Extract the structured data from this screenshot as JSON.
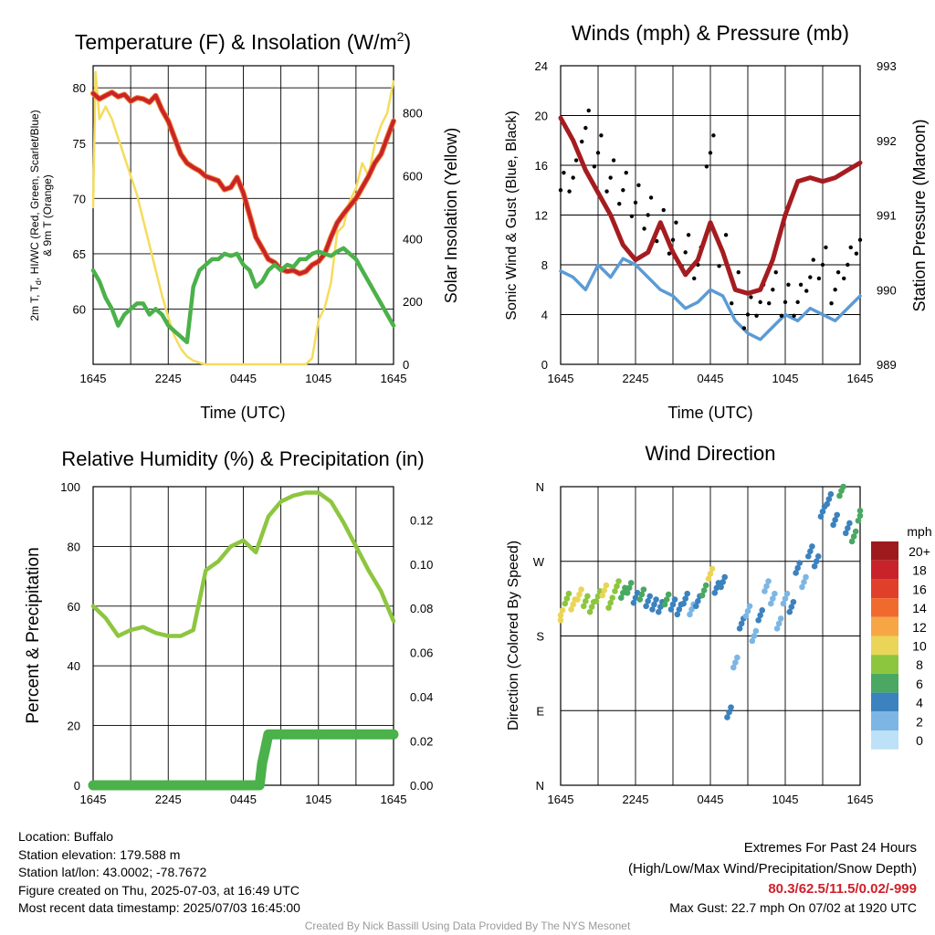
{
  "panels": {
    "temp": {
      "title": "Temperature (F) & Insolation (W/m",
      "title_sup": "2",
      "title_end": ")",
      "xlabel": "Time (UTC)",
      "ylabel_left_line1": "2m T, T",
      "ylabel_left_sub": "d",
      "ylabel_left_line1_end": ", HI/WC (Red, Green, Scarlet/Blue)",
      "ylabel_left_line2": "& 9m T (Orange)",
      "ylabel_right": "Solar Insolation (Yellow)"
    },
    "wind": {
      "title": "Winds (mph) & Pressure (mb)",
      "xlabel": "Time (UTC)",
      "ylabel_left": "Sonic Wind & Gust (Blue, Black)",
      "ylabel_right": "Station Pressure (Maroon)"
    },
    "rh": {
      "title": "Relative Humidity (%) & Precipitation (in)",
      "ylabel_left": "Percent & Precipitation"
    },
    "dir": {
      "title": "Wind Direction",
      "ylabel_left": "Direction (Colored By Speed)",
      "legend_title": "mph"
    }
  },
  "chart_data": [
    {
      "type": "line",
      "id": "temp",
      "title": "Temperature (F) & Insolation (W/m2)",
      "xlabel": "Time (UTC)",
      "x_ticks": [
        "1645",
        "2245",
        "0445",
        "1045",
        "1645"
      ],
      "xlim_hours": [
        0,
        24
      ],
      "ylim": [
        55,
        82
      ],
      "y_ticks": [
        60,
        65,
        70,
        75,
        80
      ],
      "ylim_right": [
        0,
        950
      ],
      "y2_ticks": [
        0,
        200,
        400,
        600,
        800
      ],
      "colors": {
        "temp": "#c8232a",
        "temp9m": "#f07a2a",
        "dewpoint": "#4bb14a",
        "solar": "#f5dc5c"
      },
      "series": [
        {
          "name": "2m T",
          "axis": "left",
          "x": [
            0,
            0.5,
            1,
            1.5,
            2,
            2.5,
            3,
            3.5,
            4,
            4.5,
            5,
            5.5,
            6,
            6.5,
            7,
            7.5,
            8,
            8.5,
            9,
            9.5,
            10,
            10.5,
            11,
            11.5,
            12,
            12.5,
            13,
            13.5,
            14,
            14.5,
            15,
            15.5,
            16,
            16.5,
            17,
            17.5,
            18,
            18.5,
            19,
            19.5,
            20,
            20.5,
            21,
            21.5,
            22,
            22.5,
            23,
            23.5,
            24
          ],
          "values": [
            79.5,
            79.0,
            79.3,
            79.6,
            79.2,
            79.4,
            78.8,
            79.1,
            79.0,
            78.7,
            79.3,
            78.0,
            77.0,
            75.5,
            74.0,
            73.2,
            72.8,
            72.5,
            72.0,
            71.8,
            71.6,
            70.8,
            71.0,
            71.9,
            70.5,
            68.5,
            66.5,
            65.5,
            64.5,
            64.2,
            63.6,
            63.4,
            63.5,
            63.2,
            63.4,
            64.0,
            64.3,
            65.0,
            66.5,
            67.8,
            68.6,
            69.3,
            70.0,
            71.0,
            72.0,
            73.2,
            74.0,
            75.5,
            77.0
          ]
        },
        {
          "name": "Dew Point",
          "axis": "left",
          "x": [
            0,
            0.5,
            1,
            1.5,
            2,
            2.5,
            3,
            3.5,
            4,
            4.5,
            5,
            5.5,
            6,
            6.5,
            7,
            7.5,
            8,
            8.5,
            9,
            9.5,
            10,
            10.5,
            11,
            11.5,
            12,
            12.5,
            13,
            13.5,
            14,
            14.5,
            15,
            15.5,
            16,
            16.5,
            17,
            17.5,
            18,
            18.5,
            19,
            19.5,
            20,
            20.5,
            21,
            21.5,
            22,
            22.5,
            23,
            23.5,
            24
          ],
          "values": [
            63.5,
            62.5,
            61.0,
            60.0,
            58.5,
            59.5,
            60.0,
            60.5,
            60.5,
            59.5,
            60.0,
            59.5,
            58.5,
            58.0,
            57.5,
            57.0,
            62.0,
            63.5,
            64.0,
            64.5,
            64.5,
            65.0,
            64.8,
            65.0,
            64.0,
            63.5,
            62.0,
            62.5,
            63.5,
            64.0,
            63.5,
            64.0,
            63.8,
            64.5,
            64.5,
            65.0,
            65.2,
            65.0,
            64.8,
            65.2,
            65.5,
            65.0,
            64.5,
            63.5,
            62.5,
            61.5,
            60.5,
            59.5,
            58.5
          ]
        },
        {
          "name": "Solar Insolation",
          "axis": "right",
          "x": [
            0,
            0.2,
            0.5,
            1,
            1.5,
            2,
            2.5,
            3,
            3.5,
            4,
            4.5,
            5,
            5.5,
            6,
            6.5,
            7,
            7.5,
            8,
            8.5,
            9,
            10,
            11,
            12,
            13,
            14,
            15,
            16,
            17,
            17.5,
            18,
            18.5,
            19,
            19.5,
            20,
            20.5,
            21,
            21.5,
            22,
            22.5,
            23,
            23.5,
            24
          ],
          "values": [
            500,
            930,
            780,
            820,
            780,
            720,
            660,
            600,
            540,
            460,
            380,
            300,
            220,
            150,
            90,
            50,
            25,
            12,
            5,
            0,
            0,
            0,
            0,
            0,
            0,
            0,
            0,
            0,
            20,
            140,
            180,
            260,
            420,
            440,
            520,
            560,
            640,
            600,
            700,
            760,
            800,
            900
          ]
        }
      ]
    },
    {
      "type": "line",
      "id": "wind",
      "title": "Winds (mph) & Pressure (mb)",
      "xlabel": "Time (UTC)",
      "x_ticks": [
        "1645",
        "2245",
        "0445",
        "1045",
        "1645"
      ],
      "xlim_hours": [
        0,
        24
      ],
      "ylim": [
        0,
        24
      ],
      "y_ticks": [
        0,
        4,
        8,
        12,
        16,
        20,
        24
      ],
      "ylim_right": [
        989,
        993
      ],
      "y2_ticks": [
        989,
        990,
        991,
        992,
        993
      ],
      "colors": {
        "wind": "#5b9bd5",
        "gust": "#000000",
        "pressure": "#a51c20"
      },
      "series": [
        {
          "name": "Sonic Wind",
          "axis": "left",
          "x": [
            0,
            1,
            2,
            3,
            4,
            5,
            6,
            7,
            8,
            9,
            10,
            11,
            12,
            13,
            14,
            15,
            16,
            17,
            18,
            19,
            20,
            21,
            22,
            23,
            24
          ],
          "values": [
            7.5,
            7.0,
            6.0,
            8.0,
            7.0,
            8.5,
            8.0,
            7.0,
            6.0,
            5.5,
            4.5,
            5.0,
            6.0,
            5.5,
            3.5,
            2.5,
            2.0,
            3.0,
            4.0,
            3.5,
            4.5,
            4.0,
            3.5,
            4.5,
            5.5
          ]
        },
        {
          "name": "Gust",
          "axis": "left",
          "x": [
            0,
            1,
            2,
            3,
            4,
            5,
            6,
            7,
            8,
            9,
            10,
            11,
            12,
            13,
            14,
            15,
            16,
            17,
            18,
            19,
            20,
            21,
            22,
            23,
            24
          ],
          "values": [
            14,
            15,
            19,
            17,
            15,
            14,
            13,
            12,
            11,
            10,
            9,
            8,
            17,
            9,
            6,
            4,
            5,
            6,
            5,
            5,
            7,
            8,
            6,
            8,
            10
          ]
        },
        {
          "name": "Station Pressure",
          "axis": "right",
          "x": [
            0,
            1,
            2,
            3,
            4,
            5,
            6,
            7,
            8,
            9,
            10,
            11,
            12,
            13,
            14,
            15,
            16,
            17,
            18,
            19,
            20,
            21,
            22,
            23,
            24
          ],
          "values": [
            992.3,
            992.0,
            991.6,
            991.3,
            991.0,
            990.6,
            990.4,
            990.5,
            990.9,
            990.5,
            990.2,
            990.4,
            990.9,
            990.5,
            990.0,
            989.95,
            990.0,
            990.4,
            991.0,
            991.45,
            991.5,
            991.45,
            991.5,
            991.6,
            991.7
          ]
        }
      ]
    },
    {
      "type": "line",
      "id": "rh",
      "title": "Relative Humidity (%) & Precipitation (in)",
      "x_ticks": [
        "1645",
        "2245",
        "0445",
        "1045",
        "1645"
      ],
      "xlim_hours": [
        0,
        24
      ],
      "ylim": [
        0,
        100
      ],
      "y_ticks": [
        0,
        20,
        40,
        60,
        80,
        100
      ],
      "ylim_right": [
        0,
        0.135
      ],
      "y2_ticks": [
        "0.00",
        "0.02",
        "0.04",
        "0.06",
        "0.08",
        "0.10",
        "0.12"
      ],
      "colors": {
        "rh": "#8dc63f",
        "precip": "#4bb14a"
      },
      "series": [
        {
          "name": "Relative Humidity",
          "axis": "left",
          "x": [
            0,
            1,
            2,
            3,
            4,
            5,
            6,
            7,
            8,
            9,
            10,
            11,
            12,
            13,
            14,
            15,
            16,
            17,
            18,
            19,
            20,
            21,
            22,
            23,
            24
          ],
          "values": [
            60,
            56,
            50,
            52,
            53,
            51,
            50,
            50,
            52,
            72,
            75,
            80,
            82,
            78,
            90,
            95,
            97,
            98,
            98,
            95,
            88,
            80,
            72,
            65,
            55
          ]
        },
        {
          "name": "Precipitation",
          "axis": "right",
          "x": [
            0,
            13.3,
            13.5,
            13.7,
            14,
            16,
            18,
            20,
            22,
            24
          ],
          "values": [
            0,
            0,
            0.01,
            0.015,
            0.023,
            0.023,
            0.023,
            0.023,
            0.023,
            0.023
          ]
        }
      ]
    },
    {
      "type": "scatter",
      "id": "dir",
      "title": "Wind Direction",
      "x_ticks": [
        "1645",
        "2245",
        "0445",
        "1045",
        "1645"
      ],
      "xlim_hours": [
        0,
        24
      ],
      "y_ticks": [
        "N",
        "E",
        "S",
        "W",
        "N"
      ],
      "ylim_deg": [
        0,
        360
      ],
      "legend": {
        "title": "mph",
        "labels": [
          "20+",
          "18",
          "16",
          "14",
          "12",
          "10",
          "8",
          "6",
          "4",
          "2",
          "0"
        ],
        "colors": [
          "#9e1a1d",
          "#c8232a",
          "#e0402a",
          "#f06a2e",
          "#f7a646",
          "#ead558",
          "#8cc63f",
          "#4aa862",
          "#3b82bf",
          "#7db6e4",
          "#bde1f7"
        ]
      },
      "series": [
        {
          "name": "Direction",
          "x": [
            0,
            0.5,
            1,
            1.5,
            2,
            2.5,
            3,
            3.5,
            4,
            4.5,
            5,
            5.5,
            6,
            6.5,
            7,
            7.5,
            8,
            8.5,
            9,
            9.5,
            10,
            10.5,
            11,
            11.5,
            12,
            12.5,
            13,
            13.5,
            14,
            14.5,
            15,
            15.5,
            16,
            16.5,
            17,
            17.5,
            18,
            18.5,
            19,
            19.5,
            20,
            20.5,
            21,
            21.5,
            22,
            22.5,
            23,
            23.5,
            24
          ],
          "values": [
            205,
            225,
            218,
            230,
            222,
            215,
            228,
            235,
            220,
            240,
            232,
            238,
            226,
            230,
            222,
            218,
            215,
            224,
            218,
            212,
            225,
            212,
            222,
            235,
            255,
            238,
            245,
            88,
            148,
            195,
            210,
            180,
            205,
            240,
            225,
            195,
            225,
            215,
            262,
            245,
            282,
            270,
            330,
            345,
            320,
            355,
            310,
            300,
            325
          ],
          "speed": [
            9,
            8,
            10,
            9,
            8,
            7,
            8,
            10,
            7,
            8,
            6,
            5,
            4,
            5,
            4,
            3,
            4,
            5,
            3,
            4,
            3,
            2,
            3,
            5,
            9,
            4,
            3,
            4,
            2,
            3,
            1,
            2,
            3,
            2,
            1,
            1,
            2,
            3,
            3,
            2,
            4,
            3,
            4,
            3,
            4,
            5,
            4,
            6,
            5
          ]
        }
      ]
    }
  ],
  "info": {
    "location": "Location: Buffalo",
    "elevation": "Station elevation: 179.588 m",
    "latlon": "Station lat/lon: 43.0002; -78.7672",
    "created": "Figure created on Thu, 2025-07-03, at 16:49 UTC",
    "recent": "Most recent data timestamp: 2025/07/03 16:45:00"
  },
  "extremes": {
    "title": "Extremes For Past 24 Hours",
    "subtitle": "(High/Low/Max Wind/Precipitation/Snow Depth)",
    "values": "80.3/62.5/11.5/0.02/-999",
    "gust": "Max Gust: 22.7 mph On 07/02 at 1920 UTC"
  },
  "credit": "Created By Nick Bassill Using Data Provided By The NYS Mesonet"
}
